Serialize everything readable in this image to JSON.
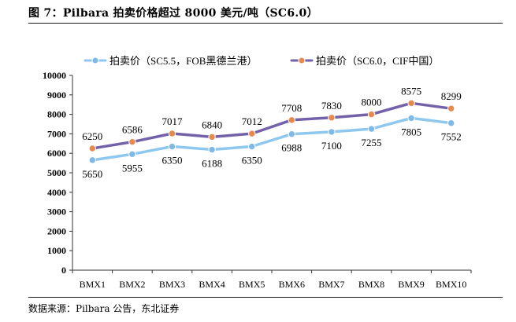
{
  "header": {
    "title": "图 7：Pilbara 拍卖价格超过 8000 美元/吨（SC6.0）"
  },
  "footer": {
    "source": "数据来源：Pilbara 公告，东北证券"
  },
  "colors": {
    "series1": "#8ec8ef",
    "series2": "#7361aa",
    "marker1": "#7fb9e8",
    "marker2": "#e58a4c",
    "axis": "#333333"
  },
  "chart_data": {
    "type": "line",
    "categories": [
      "BMX1",
      "BMX2",
      "BMX3",
      "BMX4",
      "BMX5",
      "BMX6",
      "BMX7",
      "BMX8",
      "BMX9",
      "BMX10"
    ],
    "series": [
      {
        "name": "拍卖价（SC5.5，FOB黑德兰港）",
        "values": [
          5650,
          5955,
          6350,
          6188,
          6350,
          6988,
          7100,
          7255,
          7805,
          7552
        ]
      },
      {
        "name": "拍卖价（SC6.0，CIF中国）",
        "values": [
          6250,
          6586,
          7017,
          6840,
          7012,
          7708,
          7830,
          8000,
          8575,
          8299
        ]
      }
    ],
    "yticks": [
      0,
      1000,
      2000,
      3000,
      4000,
      5000,
      6000,
      7000,
      8000,
      9000,
      10000
    ],
    "ylim": [
      0,
      10000
    ],
    "grid": false,
    "legend": "top",
    "data_labels": true
  }
}
